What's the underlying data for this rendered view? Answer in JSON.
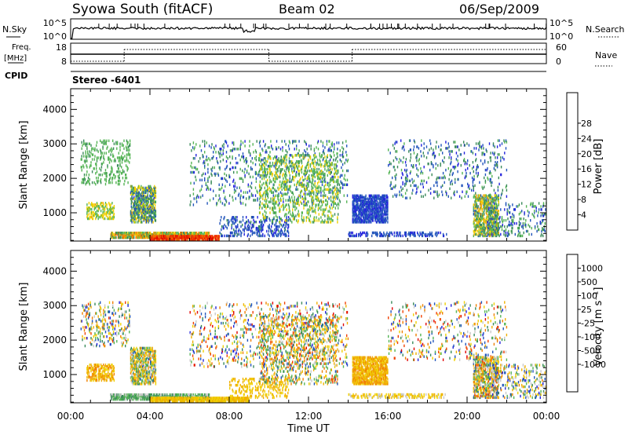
{
  "header": {
    "station": "Syowa South (fitACF)",
    "beam": "Beam 02",
    "date": "06/Sep/2009"
  },
  "top_panels": {
    "nsky_label": "N.Sky",
    "nsky_ticks": [
      "10^5",
      "10^0"
    ],
    "nsearch_label": "N.Search",
    "nsearch_ticks": [
      "10^5",
      "10^0"
    ],
    "freq_label_top": "Freq.",
    "freq_label_unit": "[MHz]",
    "freq_ticks": [
      "18",
      "8"
    ],
    "nave_label": "Nave",
    "nave_ticks": [
      "60",
      "0"
    ],
    "cpid_label": "CPID",
    "cpid_value": "Stereo -6401"
  },
  "x_axis": {
    "label": "Time UT",
    "ticks": [
      "00:00",
      "04:00",
      "08:00",
      "12:00",
      "16:00",
      "20:00",
      "00:00"
    ],
    "range_hours": [
      0,
      24
    ]
  },
  "colors": {
    "power_scale": [
      "#2222dd",
      "#2255bb",
      "#3a8a5a",
      "#54b454",
      "#f0d000",
      "#f0a000",
      "#f07000",
      "#f03000",
      "#e00000"
    ],
    "velocity_scale": [
      "#e00000",
      "#f04000",
      "#f08000",
      "#f0b000",
      "#f0d000",
      "#c8c8c8",
      "#54b454",
      "#3a8a5a",
      "#2255bb",
      "#2222dd"
    ]
  },
  "chart_data": [
    {
      "type": "heatmap",
      "name": "power",
      "ylabel": "Slant Range [km]",
      "xlabel": "",
      "ylim": [
        180,
        4600
      ],
      "xlim": [
        0,
        24
      ],
      "y_ticks": [
        "1000",
        "2000",
        "3000",
        "4000"
      ],
      "colorbar": {
        "label": "Power [dB]",
        "ticks": [
          "4",
          "8",
          "12",
          "16",
          "20",
          "24",
          "28"
        ],
        "range": [
          0,
          32
        ]
      },
      "regions": [
        {
          "t": [
            0.5,
            3.0
          ],
          "r": [
            1800,
            3100
          ],
          "v": [
            10,
            14
          ],
          "d": 0.12
        },
        {
          "t": [
            0.8,
            2.2
          ],
          "r": [
            800,
            1300
          ],
          "v": [
            12,
            18
          ],
          "d": 0.35
        },
        {
          "t": [
            3.0,
            4.3
          ],
          "r": [
            700,
            1800
          ],
          "v": [
            3,
            18
          ],
          "d": 0.5
        },
        {
          "t": [
            2.0,
            7.0
          ],
          "r": [
            250,
            420
          ],
          "v": [
            8,
            24
          ],
          "d": 0.75
        },
        {
          "t": [
            4.0,
            7.5
          ],
          "r": [
            200,
            320
          ],
          "v": [
            22,
            31
          ],
          "d": 0.8
        },
        {
          "t": [
            7.5,
            11.0
          ],
          "r": [
            300,
            900
          ],
          "v": [
            2,
            8
          ],
          "d": 0.2
        },
        {
          "t": [
            6.0,
            14.0
          ],
          "r": [
            1200,
            3100
          ],
          "v": [
            2,
            14
          ],
          "d": 0.07
        },
        {
          "t": [
            9.5,
            13.5
          ],
          "r": [
            700,
            2700
          ],
          "v": [
            10,
            16
          ],
          "d": 0.16
        },
        {
          "t": [
            14.2,
            16.0
          ],
          "r": [
            700,
            1500
          ],
          "v": [
            2,
            7
          ],
          "d": 0.6
        },
        {
          "t": [
            14.0,
            19.0
          ],
          "r": [
            300,
            420
          ],
          "v": [
            2,
            6
          ],
          "d": 0.3
        },
        {
          "t": [
            16.0,
            22.0
          ],
          "r": [
            1400,
            3100
          ],
          "v": [
            2,
            12
          ],
          "d": 0.06
        },
        {
          "t": [
            20.3,
            21.6
          ],
          "r": [
            300,
            1500
          ],
          "v": [
            6,
            20
          ],
          "d": 0.45
        },
        {
          "t": [
            21.0,
            24.0
          ],
          "r": [
            300,
            1300
          ],
          "v": [
            2,
            14
          ],
          "d": 0.12
        }
      ]
    },
    {
      "type": "heatmap",
      "name": "velocity",
      "ylabel": "Slant Range [km]",
      "xlabel": "Time UT",
      "ylim": [
        180,
        4600
      ],
      "xlim": [
        0,
        24
      ],
      "y_ticks": [
        "1000",
        "2000",
        "3000",
        "4000"
      ],
      "colorbar": {
        "label": "Velocity [m s⁻¹]",
        "ticks": [
          "1000",
          "500",
          "100",
          "25",
          "-25",
          "-100",
          "-500",
          "-1000"
        ]
      },
      "regions": [
        {
          "t": [
            0.5,
            3.0
          ],
          "r": [
            1800,
            3100
          ],
          "v": [
            1,
            9
          ],
          "d": 0.12
        },
        {
          "t": [
            0.8,
            2.2
          ],
          "r": [
            800,
            1300
          ],
          "v": [
            2,
            4
          ],
          "d": 0.35
        },
        {
          "t": [
            3.0,
            4.3
          ],
          "r": [
            700,
            1800
          ],
          "v": [
            2,
            8
          ],
          "d": 0.5
        },
        {
          "t": [
            2.0,
            7.0
          ],
          "r": [
            250,
            420
          ],
          "v": [
            5,
            7
          ],
          "d": 0.75
        },
        {
          "t": [
            4.0,
            9.0
          ],
          "r": [
            200,
            320
          ],
          "v": [
            3,
            4
          ],
          "d": 0.8
        },
        {
          "t": [
            8.0,
            11.0
          ],
          "r": [
            300,
            900
          ],
          "v": [
            3,
            4
          ],
          "d": 0.2
        },
        {
          "t": [
            6.0,
            14.0
          ],
          "r": [
            1200,
            3100
          ],
          "v": [
            0,
            9
          ],
          "d": 0.07
        },
        {
          "t": [
            9.5,
            13.5
          ],
          "r": [
            700,
            2700
          ],
          "v": [
            1,
            8
          ],
          "d": 0.16
        },
        {
          "t": [
            14.2,
            16.0
          ],
          "r": [
            700,
            1500
          ],
          "v": [
            2,
            4
          ],
          "d": 0.6
        },
        {
          "t": [
            14.0,
            19.0
          ],
          "r": [
            300,
            420
          ],
          "v": [
            3,
            5
          ],
          "d": 0.3
        },
        {
          "t": [
            16.0,
            22.0
          ],
          "r": [
            1400,
            3100
          ],
          "v": [
            0,
            9
          ],
          "d": 0.06
        },
        {
          "t": [
            20.3,
            21.6
          ],
          "r": [
            300,
            1500
          ],
          "v": [
            1,
            8
          ],
          "d": 0.45
        },
        {
          "t": [
            21.0,
            24.0
          ],
          "r": [
            300,
            1300
          ],
          "v": [
            2,
            9
          ],
          "d": 0.12
        }
      ]
    }
  ]
}
